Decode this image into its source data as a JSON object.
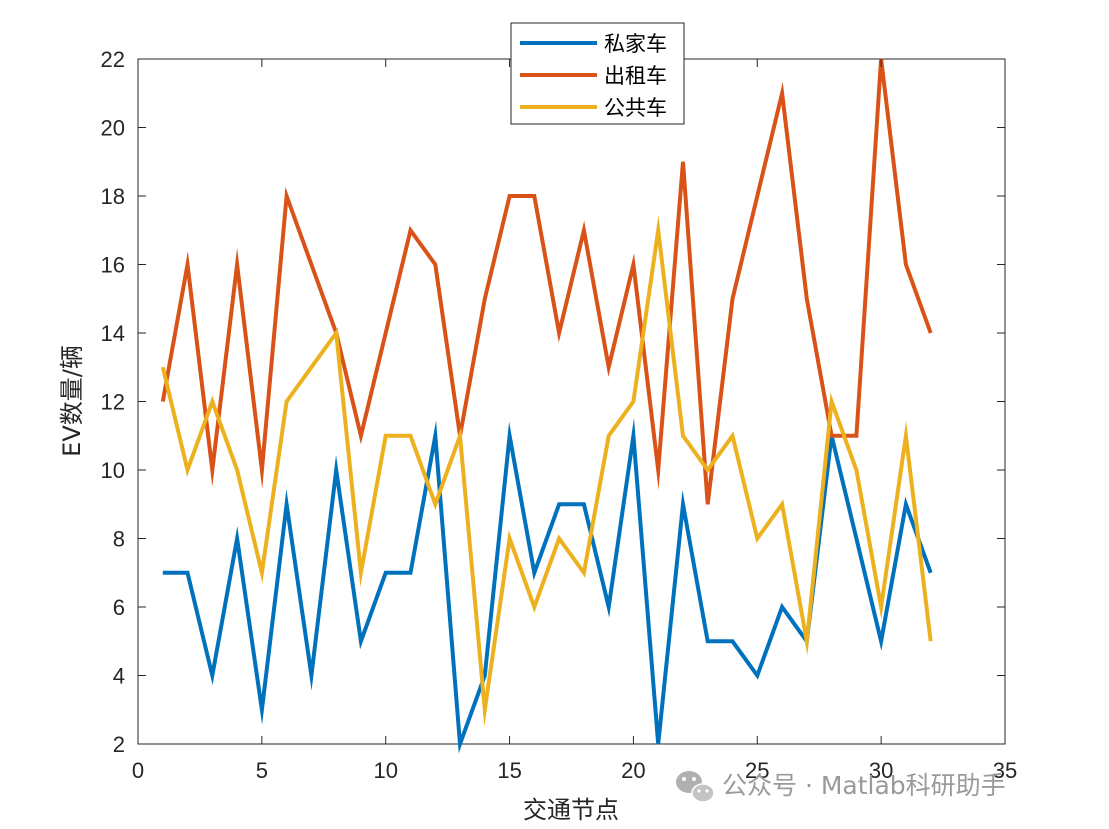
{
  "chart_data": {
    "type": "line",
    "xlabel": "交通节点",
    "ylabel": "EV数量/辆",
    "xlim": [
      0,
      35
    ],
    "ylim": [
      2,
      22
    ],
    "xticks": [
      0,
      5,
      10,
      15,
      20,
      25,
      30,
      35
    ],
    "yticks": [
      2,
      4,
      6,
      8,
      10,
      12,
      14,
      16,
      18,
      20,
      22
    ],
    "grid": false,
    "legend_position": "top-center",
    "x": [
      1,
      2,
      3,
      4,
      5,
      6,
      7,
      8,
      9,
      10,
      11,
      12,
      13,
      14,
      15,
      16,
      17,
      18,
      19,
      20,
      21,
      22,
      23,
      24,
      25,
      26,
      27,
      28,
      29,
      30,
      31,
      32
    ],
    "series": [
      {
        "name": "私家车",
        "color": "#0072BD",
        "values": [
          7,
          7,
          4,
          8,
          3,
          9,
          4,
          10,
          5,
          7,
          7,
          11,
          2,
          4,
          11,
          7,
          9,
          9,
          6,
          11,
          2,
          9,
          5,
          5,
          4,
          6,
          5,
          11,
          8,
          5,
          9,
          7
        ]
      },
      {
        "name": "出租车",
        "color": "#D95319",
        "values": [
          12,
          16,
          10,
          16,
          10,
          18,
          16,
          14,
          11,
          14,
          17,
          16,
          11,
          15,
          18,
          18,
          14,
          17,
          13,
          16,
          10,
          19,
          9,
          15,
          18,
          21,
          15,
          11,
          11,
          22,
          16,
          14
        ]
      },
      {
        "name": "公共车",
        "color": "#EDB120",
        "values": [
          13,
          10,
          12,
          10,
          7,
          12,
          13,
          14,
          7,
          11,
          11,
          9,
          11,
          3,
          8,
          6,
          8,
          7,
          11,
          12,
          17,
          11,
          10,
          11,
          8,
          9,
          5,
          12,
          10,
          6,
          11,
          5
        ]
      }
    ]
  },
  "watermark": {
    "icon": "wechat-icon",
    "text": "公众号 · Matlab科研助手"
  }
}
